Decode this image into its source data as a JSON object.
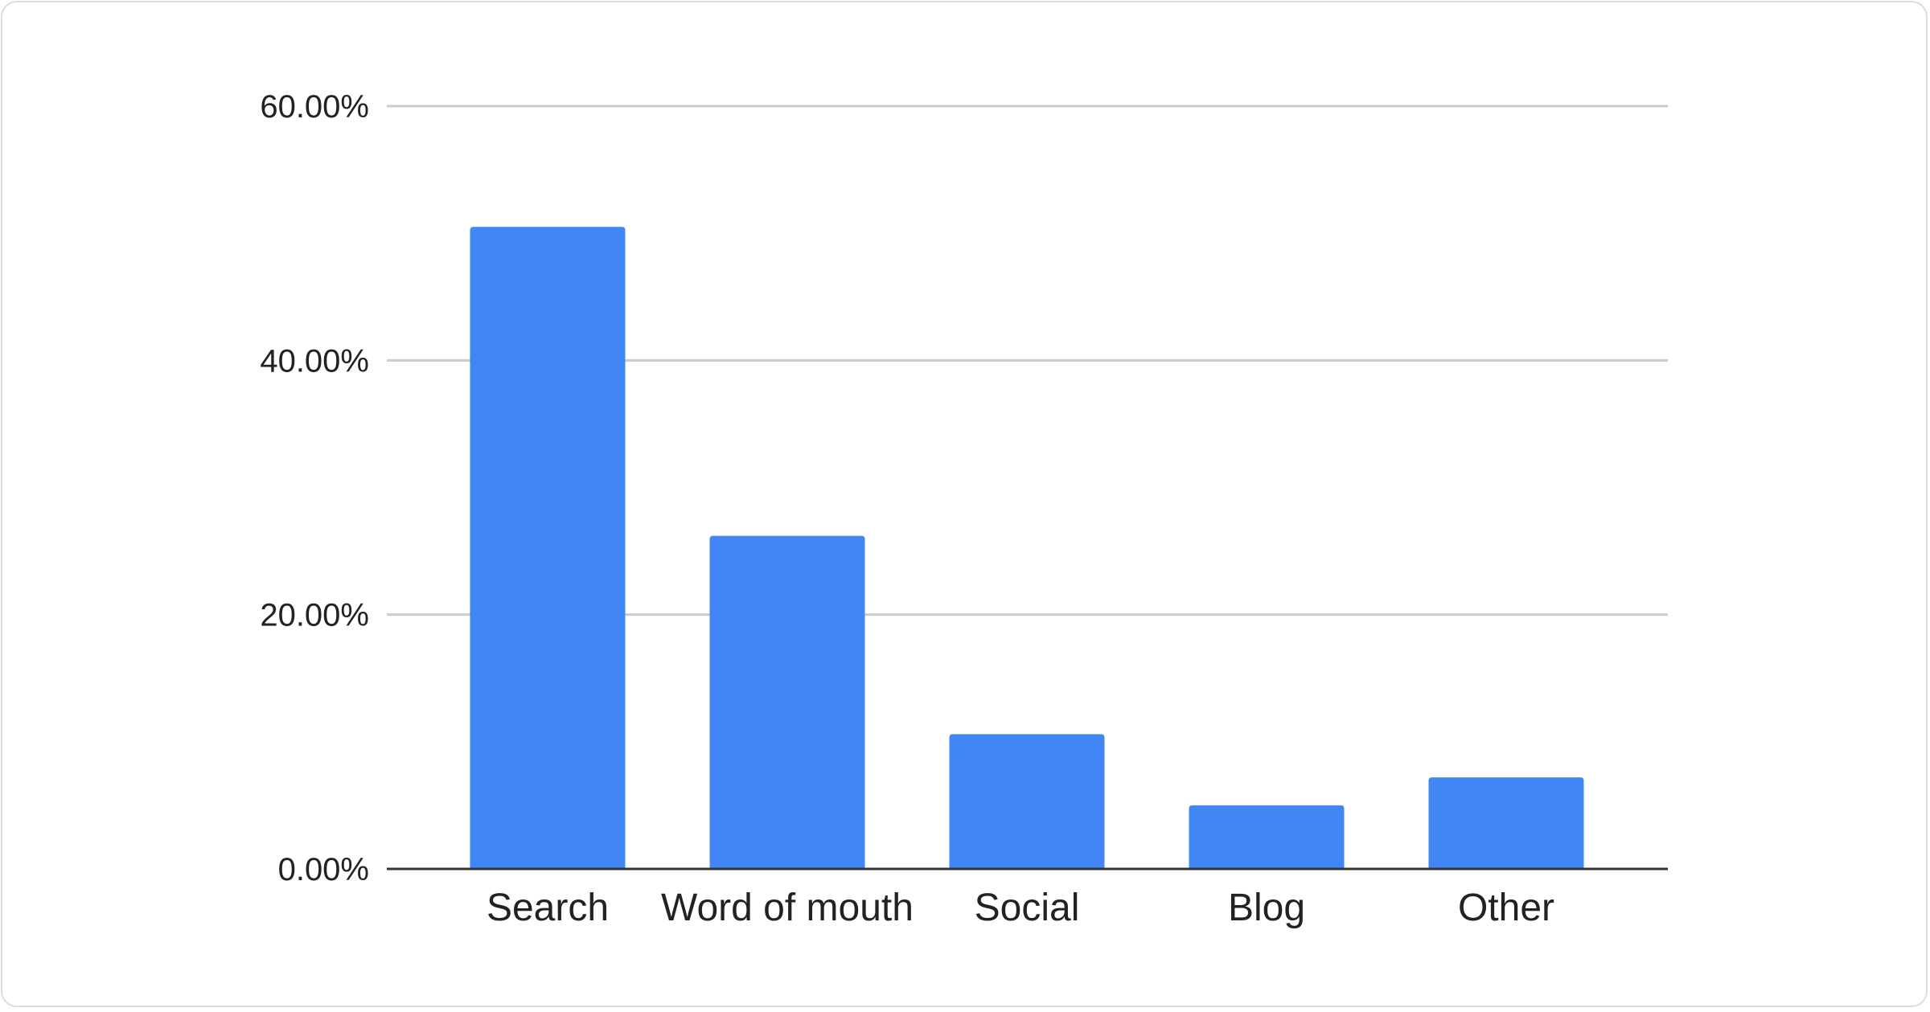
{
  "chart_data": {
    "type": "bar",
    "title": "",
    "xlabel": "",
    "ylabel": "",
    "categories": [
      "Search",
      "Word of mouth",
      "Social",
      "Blog",
      "Other"
    ],
    "values": [
      50.5,
      26.2,
      10.6,
      5.0,
      7.2
    ],
    "unit": "%",
    "ylim": [
      0,
      60
    ],
    "yticks": [
      0,
      20,
      40,
      60
    ],
    "ytick_labels": [
      "0.00%",
      "20.00%",
      "40.00%",
      "60.00%"
    ],
    "grid": true,
    "legend": "none",
    "bar_color": "#4285f4"
  }
}
